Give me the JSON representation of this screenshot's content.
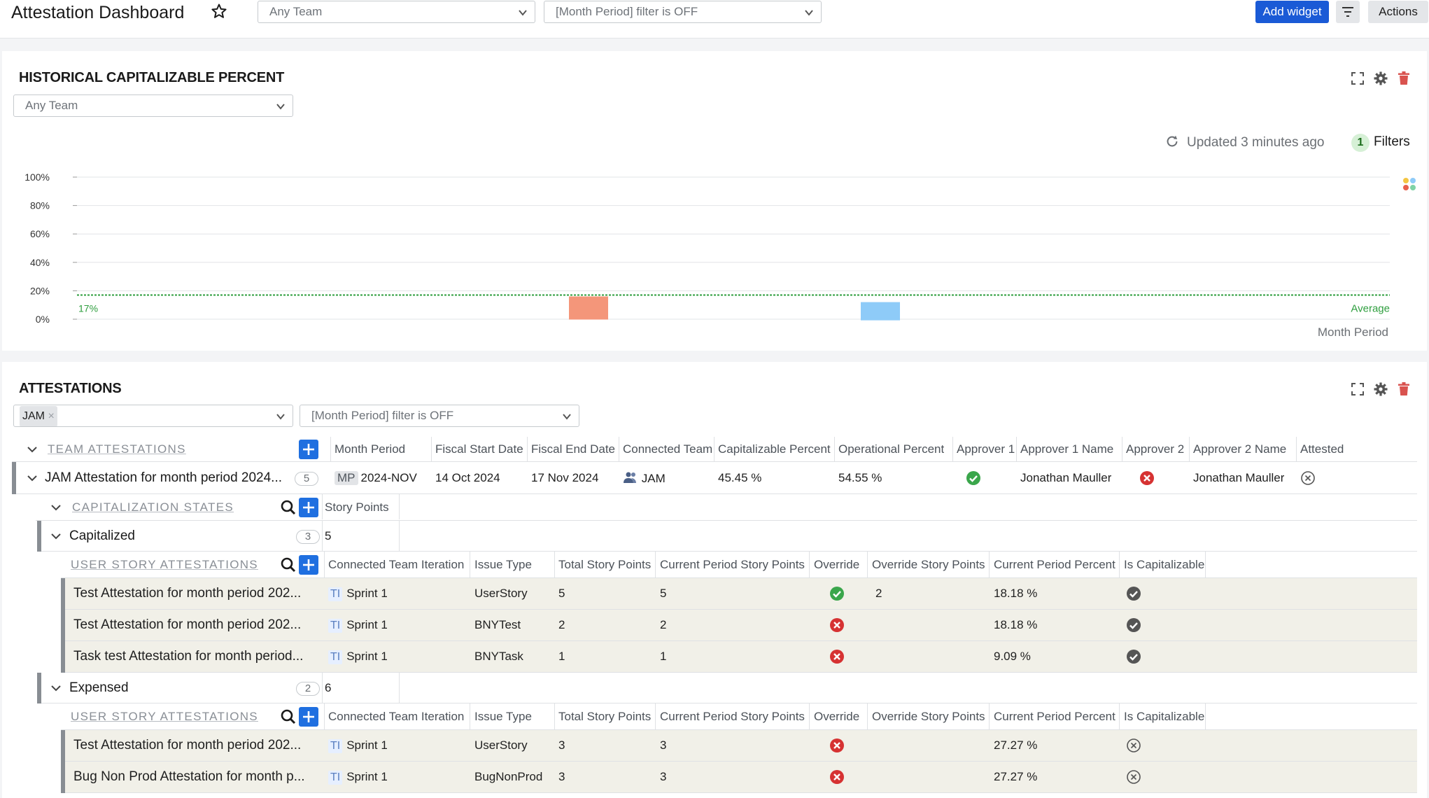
{
  "dashboard": {
    "title": "Attestation Dashboard",
    "team_filter": "Any Team",
    "period_filter": "[Month Period] filter is OFF",
    "add_widget_label": "Add widget",
    "actions_label": "Actions",
    "accent_color": "#1a5ad6"
  },
  "historical": {
    "title": "HISTORICAL CAPITALIZABLE PERCENT",
    "team_select": "Any Team",
    "updated_text": "Updated 3 minutes ago",
    "filters_count": "1",
    "filters_label": "Filters",
    "chart_data": {
      "type": "bar",
      "title": "",
      "xlabel": "Month Period",
      "ylabel": "",
      "ylim": [
        0,
        100
      ],
      "y_ticks": [
        "0%",
        "20%",
        "40%",
        "60%",
        "80%",
        "100%"
      ],
      "grid": true,
      "series": [
        {
          "color": "#f4967a",
          "values": [
            17
          ]
        },
        {
          "color": "#8ecbf8",
          "values": [
            13
          ]
        }
      ],
      "average": {
        "value": 17,
        "label_left": "17%",
        "label_right": "Average",
        "color": "#2e9e3e"
      }
    }
  },
  "attestations": {
    "title": "ATTESTATIONS",
    "team_chip": "JAM",
    "period_filter": "[Month Period] filter is OFF",
    "team_section_label": "TEAM ATTESTATIONS",
    "team_columns": [
      "Month Period",
      "Fiscal Start Date",
      "Fiscal End Date",
      "Connected Team",
      "Capitalizable Percent",
      "Operational Percent",
      "Approver 1",
      "Approver 1 Name",
      "Approver 2",
      "Approver 2 Name",
      "Attested"
    ],
    "team_row": {
      "name": "JAM Attestation for month period 2024...",
      "count": "5",
      "month_tag": "MP",
      "month_period": "2024-NOV",
      "fiscal_start": "14 Oct 2024",
      "fiscal_end": "17 Nov 2024",
      "connected_team": "JAM",
      "capitalizable_percent": "45.45 %",
      "operational_percent": "54.55 %",
      "approver1_name": "Jonathan Mauller",
      "approver2_name": "Jonathan Mauller"
    },
    "cap_section_label": "CAPITALIZATION STATES",
    "cap_column": "Story Points",
    "story_section_label": "USER STORY ATTESTATIONS",
    "story_columns": [
      "Connected Team Iteration",
      "Issue Type",
      "Total Story Points",
      "Current Period Story Points",
      "Override",
      "Override Story Points",
      "Current Period Percent",
      "Is Capitalizable"
    ],
    "groups": [
      {
        "label": "Capitalized",
        "count": "3",
        "story_points": "5",
        "rows": [
          {
            "name": "Test Attestation for month period 202...",
            "ti": "TI",
            "iteration": "Sprint 1",
            "issue_type": "UserStory",
            "total": "5",
            "current": "5",
            "override": "yes",
            "override_points": "2",
            "percent": "18.18 %",
            "capitalizable": "yes"
          },
          {
            "name": "Test Attestation for month period 202...",
            "ti": "TI",
            "iteration": "Sprint 1",
            "issue_type": "BNYTest",
            "total": "2",
            "current": "2",
            "override": "no",
            "override_points": "",
            "percent": "18.18 %",
            "capitalizable": "yes"
          },
          {
            "name": "Task test Attestation for month period...",
            "ti": "TI",
            "iteration": "Sprint 1",
            "issue_type": "BNYTask",
            "total": "1",
            "current": "1",
            "override": "no",
            "override_points": "",
            "percent": "9.09 %",
            "capitalizable": "yes"
          }
        ]
      },
      {
        "label": "Expensed",
        "count": "2",
        "story_points": "6",
        "rows": [
          {
            "name": "Test Attestation for month period 202...",
            "ti": "TI",
            "iteration": "Sprint 1",
            "issue_type": "UserStory",
            "total": "3",
            "current": "3",
            "override": "no",
            "override_points": "",
            "percent": "27.27 %",
            "capitalizable": "no"
          },
          {
            "name": "Bug Non Prod Attestation for month p...",
            "ti": "TI",
            "iteration": "Sprint 1",
            "issue_type": "BugNonProd",
            "total": "3",
            "current": "3",
            "override": "no",
            "override_points": "",
            "percent": "27.27 %",
            "capitalizable": "no"
          }
        ]
      }
    ]
  }
}
